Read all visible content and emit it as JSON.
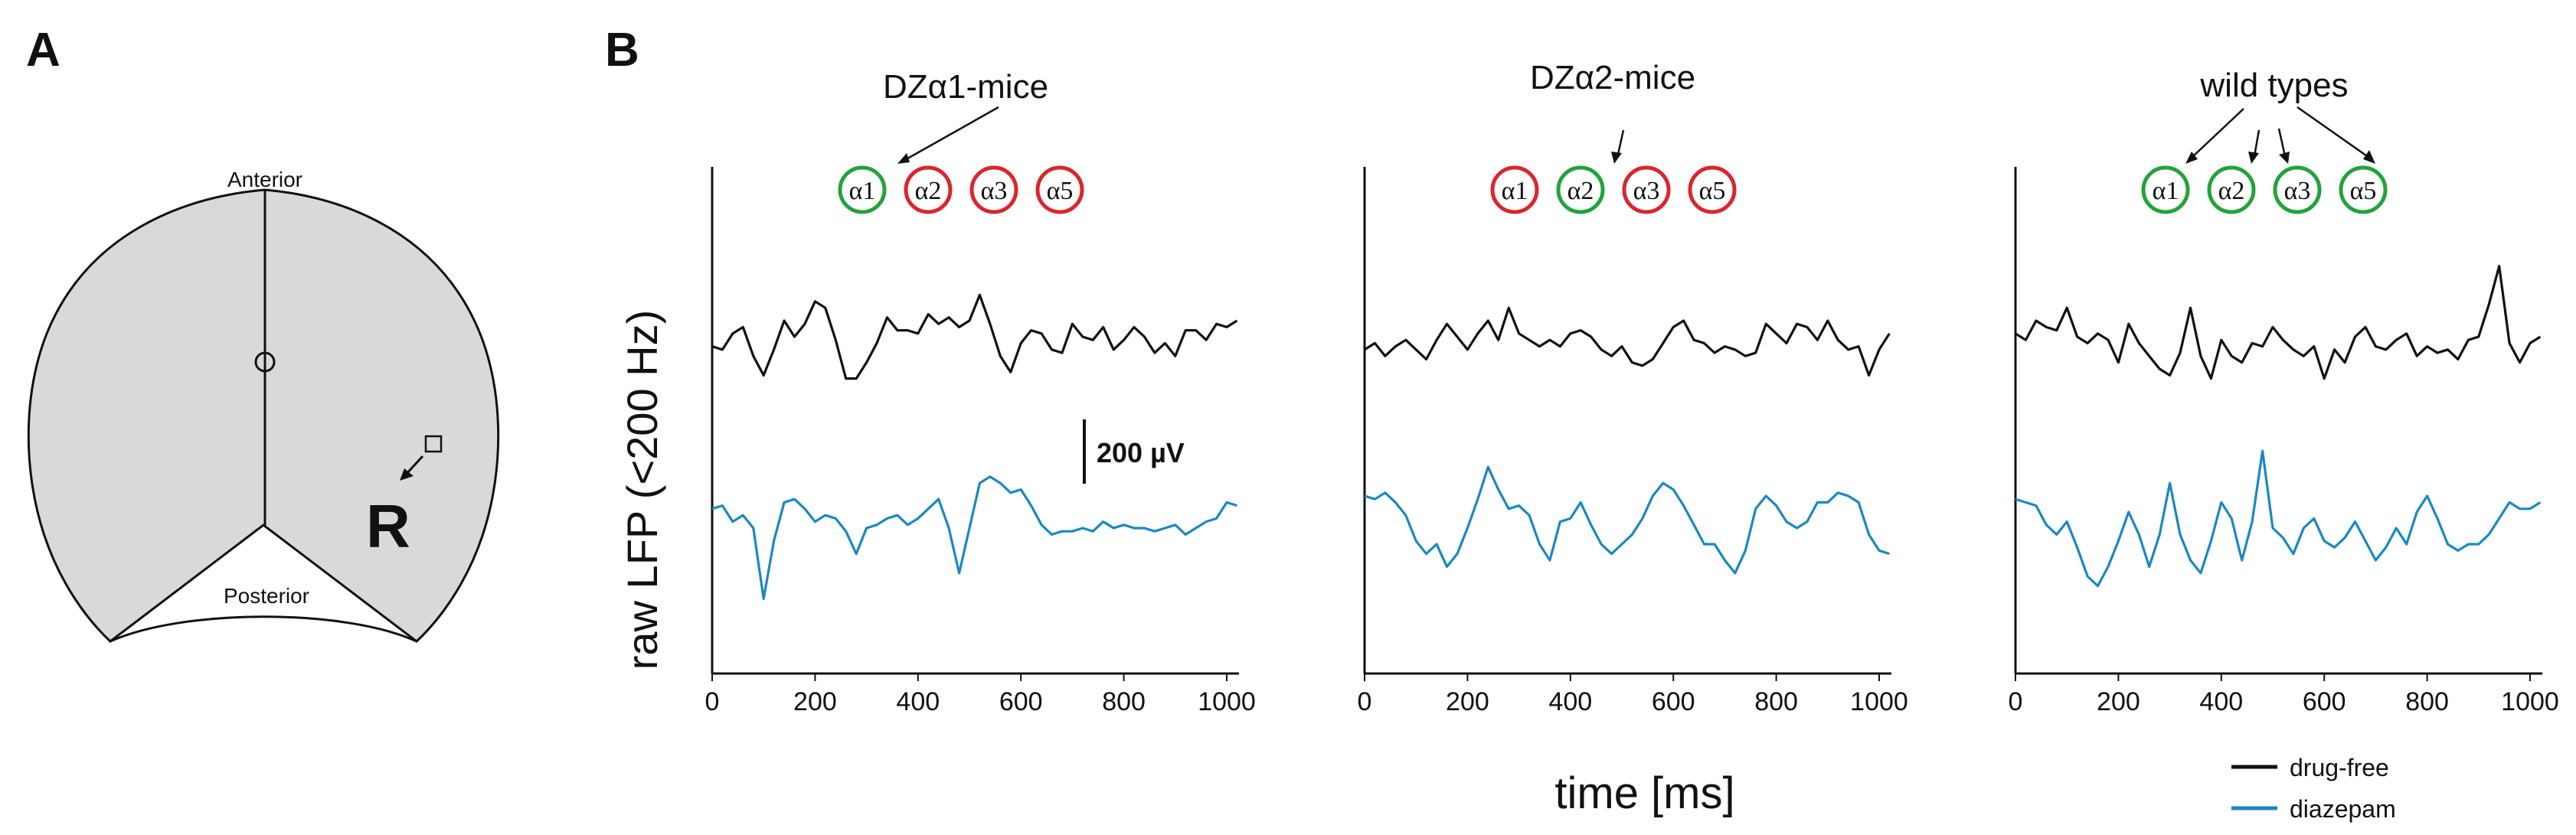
{
  "panel_a": {
    "label": "A",
    "anterior_label": "Anterior",
    "posterior_label": "Posterior",
    "recording_label": "R"
  },
  "panel_b": {
    "label": "B",
    "scale_bar_label": "200 µV"
  },
  "colors": {
    "drug_free": "#111111",
    "diazepam": "#1a88c2",
    "alpha_sensitive": "#22a33a",
    "alpha_insensitive": "#d9262c",
    "brain_fill": "#d9d9d9"
  },
  "legend": {
    "items": [
      {
        "label": "drug-free",
        "color": "#111111"
      },
      {
        "label": "diazepam",
        "color": "#1a88c2"
      }
    ]
  },
  "chart_data": {
    "type": "line",
    "ylabel": "raw LFP (<200 Hz)",
    "xlabel": "time [ms]",
    "xlim": [
      0,
      1000
    ],
    "x_ticks": [
      0,
      200,
      400,
      600,
      800,
      1000
    ],
    "ylim": [
      -500,
      800
    ],
    "scale_bar_uV": 200,
    "panels": [
      {
        "title": "DZα1-mice",
        "subunits": [
          {
            "label": "α1",
            "sensitive": true
          },
          {
            "label": "α2",
            "sensitive": false
          },
          {
            "label": "α3",
            "sensitive": false
          },
          {
            "label": "α5",
            "sensitive": false
          }
        ],
        "series": [
          {
            "name": "drug-free",
            "x": [
              0,
              20,
              40,
              60,
              80,
              100,
              120,
              140,
              160,
              180,
              200,
              220,
              240,
              260,
              280,
              300,
              320,
              340,
              360,
              380,
              400,
              420,
              440,
              460,
              480,
              500,
              520,
              540,
              560,
              580,
              600,
              620,
              640,
              660,
              680,
              700,
              720,
              740,
              760,
              780,
              800,
              820,
              840,
              860,
              880,
              900,
              920,
              940,
              960,
              980,
              1000,
              1020
            ],
            "values": [
              70,
              60,
              110,
              130,
              40,
              -20,
              60,
              150,
              100,
              140,
              210,
              190,
              90,
              -30,
              -30,
              20,
              80,
              160,
              120,
              120,
              110,
              170,
              140,
              160,
              130,
              150,
              230,
              140,
              40,
              -10,
              80,
              120,
              110,
              60,
              50,
              140,
              100,
              90,
              130,
              60,
              90,
              130,
              100,
              50,
              80,
              40,
              120,
              120,
              90,
              140,
              130,
              150
            ]
          },
          {
            "name": "diazepam",
            "x": [
              0,
              20,
              40,
              60,
              80,
              100,
              120,
              140,
              160,
              180,
              200,
              220,
              240,
              260,
              280,
              300,
              320,
              340,
              360,
              380,
              400,
              420,
              440,
              460,
              480,
              500,
              520,
              540,
              560,
              580,
              600,
              620,
              640,
              660,
              680,
              700,
              720,
              740,
              760,
              780,
              800,
              820,
              840,
              860,
              880,
              900,
              920,
              940,
              960,
              980,
              1000,
              1020
            ],
            "values": [
              -120,
              -110,
              -160,
              -140,
              -180,
              -400,
              -220,
              -100,
              -90,
              -120,
              -160,
              -140,
              -150,
              -190,
              -260,
              -180,
              -170,
              -150,
              -140,
              -170,
              -150,
              -120,
              -90,
              -180,
              -320,
              -180,
              -40,
              -20,
              -40,
              -70,
              -60,
              -110,
              -170,
              -200,
              -190,
              -190,
              -180,
              -190,
              -160,
              -180,
              -170,
              -180,
              -180,
              -190,
              -180,
              -170,
              -200,
              -180,
              -160,
              -150,
              -100,
              -110
            ]
          }
        ]
      },
      {
        "title": "DZα2-mice",
        "subunits": [
          {
            "label": "α1",
            "sensitive": false
          },
          {
            "label": "α2",
            "sensitive": true
          },
          {
            "label": "α3",
            "sensitive": false
          },
          {
            "label": "α5",
            "sensitive": false
          }
        ],
        "series": [
          {
            "name": "drug-free",
            "x": [
              0,
              20,
              40,
              60,
              80,
              100,
              120,
              140,
              160,
              180,
              200,
              220,
              240,
              260,
              280,
              300,
              320,
              340,
              360,
              380,
              400,
              420,
              440,
              460,
              480,
              500,
              520,
              540,
              560,
              580,
              600,
              620,
              640,
              660,
              680,
              700,
              720,
              740,
              760,
              780,
              800,
              820,
              840,
              860,
              880,
              900,
              920,
              940,
              960,
              980,
              1000,
              1020
            ],
            "values": [
              60,
              80,
              40,
              70,
              90,
              60,
              30,
              90,
              140,
              100,
              60,
              110,
              150,
              90,
              190,
              110,
              90,
              70,
              90,
              70,
              110,
              120,
              100,
              60,
              40,
              70,
              20,
              10,
              30,
              80,
              130,
              150,
              90,
              80,
              50,
              70,
              60,
              40,
              50,
              140,
              110,
              80,
              140,
              130,
              90,
              150,
              90,
              60,
              70,
              -20,
              60,
              110
            ]
          },
          {
            "name": "diazepam",
            "x": [
              0,
              20,
              40,
              60,
              80,
              100,
              120,
              140,
              160,
              180,
              200,
              220,
              240,
              260,
              280,
              300,
              320,
              340,
              360,
              380,
              400,
              420,
              440,
              460,
              480,
              500,
              520,
              540,
              560,
              580,
              600,
              620,
              640,
              660,
              680,
              700,
              720,
              740,
              760,
              780,
              800,
              820,
              840,
              860,
              880,
              900,
              920,
              940,
              960,
              980,
              1000,
              1020
            ],
            "values": [
              -80,
              -90,
              -70,
              -100,
              -140,
              -220,
              -260,
              -230,
              -300,
              -260,
              -180,
              -90,
              10,
              -60,
              -120,
              -110,
              -140,
              -230,
              -280,
              -160,
              -150,
              -100,
              -170,
              -230,
              -260,
              -230,
              -200,
              -150,
              -80,
              -40,
              -60,
              -110,
              -170,
              -230,
              -230,
              -280,
              -320,
              -250,
              -120,
              -80,
              -110,
              -160,
              -180,
              -160,
              -100,
              -100,
              -70,
              -80,
              -100,
              -200,
              -250,
              -260
            ]
          }
        ]
      },
      {
        "title": "wild types",
        "subunits": [
          {
            "label": "α1",
            "sensitive": true
          },
          {
            "label": "α2",
            "sensitive": true
          },
          {
            "label": "α3",
            "sensitive": true
          },
          {
            "label": "α5",
            "sensitive": true
          }
        ],
        "series": [
          {
            "name": "drug-free",
            "x": [
              0,
              20,
              40,
              60,
              80,
              100,
              120,
              140,
              160,
              180,
              200,
              220,
              240,
              260,
              280,
              300,
              320,
              340,
              360,
              380,
              400,
              420,
              440,
              460,
              480,
              500,
              520,
              540,
              560,
              580,
              600,
              620,
              640,
              660,
              680,
              700,
              720,
              740,
              760,
              780,
              800,
              820,
              840,
              860,
              880,
              900,
              920,
              940,
              960,
              980,
              1000,
              1020
            ],
            "values": [
              110,
              90,
              150,
              130,
              120,
              190,
              100,
              80,
              110,
              90,
              20,
              140,
              80,
              40,
              0,
              -20,
              50,
              190,
              40,
              -30,
              90,
              40,
              20,
              80,
              70,
              130,
              90,
              60,
              40,
              70,
              -30,
              60,
              20,
              100,
              130,
              70,
              60,
              90,
              110,
              40,
              70,
              50,
              60,
              30,
              90,
              100,
              200,
              320,
              80,
              20,
              80,
              100
            ]
          },
          {
            "name": "diazepam",
            "x": [
              0,
              20,
              40,
              60,
              80,
              100,
              120,
              140,
              160,
              180,
              200,
              220,
              240,
              260,
              280,
              300,
              320,
              340,
              360,
              380,
              400,
              420,
              440,
              460,
              480,
              500,
              520,
              540,
              560,
              580,
              600,
              620,
              640,
              660,
              680,
              700,
              720,
              740,
              760,
              780,
              800,
              820,
              840,
              860,
              880,
              900,
              920,
              940,
              960,
              980,
              1000,
              1020
            ],
            "values": [
              -90,
              -100,
              -110,
              -170,
              -200,
              -160,
              -240,
              -330,
              -360,
              -300,
              -220,
              -130,
              -200,
              -300,
              -200,
              -40,
              -200,
              -280,
              -320,
              -220,
              -100,
              -150,
              -280,
              -160,
              60,
              -180,
              -210,
              -260,
              -180,
              -150,
              -220,
              -240,
              -210,
              -160,
              -220,
              -280,
              -240,
              -180,
              -230,
              -130,
              -80,
              -150,
              -230,
              -250,
              -230,
              -230,
              -200,
              -150,
              -100,
              -120,
              -120,
              -100
            ]
          }
        ]
      }
    ]
  }
}
